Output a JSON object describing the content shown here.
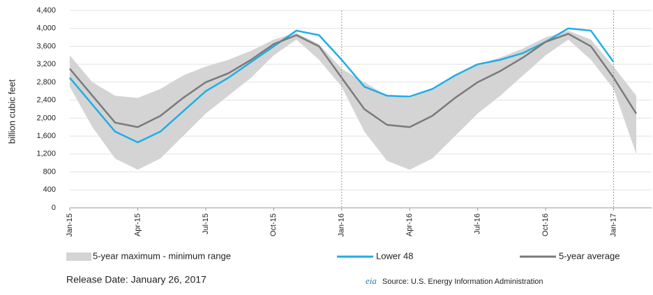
{
  "chart_data": {
    "type": "line",
    "y_label": "billion cubic feet",
    "x": [
      "2015-01",
      "2015-02",
      "2015-03",
      "2015-04",
      "2015-05",
      "2015-06",
      "2015-07",
      "2015-08",
      "2015-09",
      "2015-10",
      "2015-11",
      "2015-12",
      "2016-01",
      "2016-02",
      "2016-03",
      "2016-04",
      "2016-05",
      "2016-06",
      "2016-07",
      "2016-08",
      "2016-09",
      "2016-10",
      "2016-11",
      "2016-12",
      "2017-01",
      "2017-02"
    ],
    "xlim": [
      "2015-01",
      "2017-02"
    ],
    "xticks": [
      {
        "value": "2015-01",
        "label": "Jan-15"
      },
      {
        "value": "2015-04",
        "label": "Apr-15"
      },
      {
        "value": "2015-07",
        "label": "Jul-15"
      },
      {
        "value": "2015-10",
        "label": "Oct-15"
      },
      {
        "value": "2016-01",
        "label": "Jan-16"
      },
      {
        "value": "2016-04",
        "label": "Apr-16"
      },
      {
        "value": "2016-07",
        "label": "Jul-16"
      },
      {
        "value": "2016-10",
        "label": "Oct-16"
      },
      {
        "value": "2017-01",
        "label": "Jan-17"
      }
    ],
    "ylim": [
      0,
      4400
    ],
    "yticks": [
      0,
      400,
      800,
      {
        "value": 1200,
        "label": "1,200"
      },
      {
        "value": 1600,
        "label": "1,600"
      },
      {
        "value": 2000,
        "label": "2,000"
      },
      {
        "value": 2400,
        "label": "2,400"
      },
      {
        "value": 2800,
        "label": "2,800"
      },
      {
        "value": 3200,
        "label": "3,200"
      },
      {
        "value": 3600,
        "label": "3,600"
      },
      {
        "value": 4000,
        "label": "4,000"
      },
      {
        "value": 4400,
        "label": "4,400"
      }
    ],
    "grid": true,
    "series": [
      {
        "name": "5-year maximum - minimum range",
        "type": "range",
        "color": "#d4d4d4",
        "max": [
          3400,
          2800,
          2500,
          2450,
          2650,
          2950,
          3150,
          3300,
          3500,
          3750,
          3900,
          3650,
          3100,
          2800,
          2500,
          2450,
          2650,
          2950,
          3200,
          3350,
          3550,
          3800,
          3950,
          3750,
          3150,
          2500
        ],
        "min": [
          2700,
          1800,
          1100,
          850,
          1100,
          1600,
          2100,
          2500,
          2900,
          3400,
          3750,
          3300,
          2700,
          1700,
          1050,
          850,
          1100,
          1600,
          2100,
          2500,
          2950,
          3400,
          3750,
          3300,
          2650,
          1200
        ]
      },
      {
        "name": "Lower 48",
        "type": "line",
        "color": "#1eaee6",
        "values": [
          2900,
          2300,
          1700,
          1460,
          1700,
          2150,
          2600,
          2900,
          3250,
          3600,
          3950,
          3850,
          3300,
          2700,
          2500,
          2480,
          2650,
          2950,
          3200,
          3300,
          3450,
          3700,
          4000,
          3950,
          3250,
          null
        ]
      },
      {
        "name": "5-year average",
        "type": "line",
        "color": "#7a7a7a",
        "values": [
          3100,
          2500,
          1900,
          1800,
          2050,
          2450,
          2800,
          3000,
          3300,
          3650,
          3850,
          3600,
          2900,
          2200,
          1850,
          1800,
          2050,
          2450,
          2800,
          3050,
          3350,
          3700,
          3880,
          3600,
          2900,
          2100
        ]
      }
    ],
    "release_date": "Release Date:  January 26, 2017",
    "logo": "eia",
    "source": "Source:  U.S. Energy Information Administration"
  }
}
